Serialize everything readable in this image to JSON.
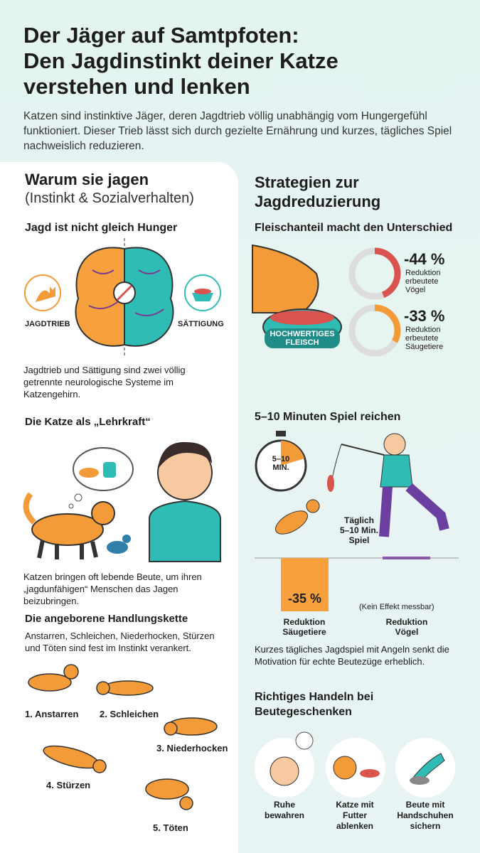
{
  "header": {
    "title_lines": [
      "Der Jäger auf Samtpfoten:",
      "Den Jagdinstinkt deiner Katze",
      "verstehen und lenken"
    ],
    "intro": "Katzen sind instinktive Jäger, deren Jagdtrieb völlig unabhängig vom Hungergefühl funktioniert. Dieser Trieb lässt sich durch gezielte Ernährung und kurzes, tägliches Spiel nachweislich reduzieren."
  },
  "left": {
    "heading": "Warum sie jagen",
    "subheading": "(Instinkt & Sozialverhalten)",
    "hunger": {
      "title": "Jagd ist nicht gleich Hunger",
      "label_left": "JAGDTRIEB",
      "label_right": "SÄTTIGUNG",
      "text": "Jagdtrieb und Sättigung sind zwei völlig getrennte neurologische Systeme im Katzengehirn."
    },
    "teacher": {
      "title": "Die Katze als „Lehrkraft“",
      "text": "Katzen bringen oft lebende Beute, um ihren „jagdunfähigen“ Menschen das Jagen beizubringen."
    },
    "chain": {
      "title": "Die angeborene Handlungskette",
      "text": "Anstarren, Schleichen, Niederhocken, Stürzen und Töten sind fest im Instinkt verankert.",
      "steps": [
        "1. Anstarren",
        "2. Schleichen",
        "3. Niederhocken",
        "4. Stürzen",
        "5. Töten"
      ]
    }
  },
  "right": {
    "heading": "Strategien zur Jagdreduzierung",
    "meat": {
      "title": "Fleischanteil macht den Unterschied",
      "bowl_label": "HOCHWERTIGES FLEISCH",
      "stats": [
        {
          "value": -44,
          "label": "-44 %",
          "text": "Reduktion\nerbeutete\nVögel",
          "color": "#d9534f"
        },
        {
          "value": -33,
          "label": "-33 %",
          "text": "Reduktion\nerbeutete\nSäugetiere",
          "color": "#f29b38"
        }
      ]
    },
    "play": {
      "title": "5–10 Minuten Spiel reichen",
      "timer": "5–10\nMIN.",
      "note": "Täglich\n5–10 Min.\nSpiel",
      "bar": {
        "value": -35,
        "label": "-35 %",
        "category": "Reduktion\nSäugetiere",
        "color": "#f7a13e"
      },
      "no_effect": {
        "note": "(Kein Effekt messbar)",
        "category": "Reduktion\nVögel"
      },
      "text": "Kurzes tägliches Jagdspiel mit Angeln senkt die Motivation für echte Beutezüge erheblich."
    },
    "gifts": {
      "title": "Richtiges Handeln bei Beutegeschenken",
      "actions": [
        "Ruhe\nbewahren",
        "Katze mit\nFutter\nablenken",
        "Beute mit\nHandschuhen\nsichern"
      ]
    }
  }
}
